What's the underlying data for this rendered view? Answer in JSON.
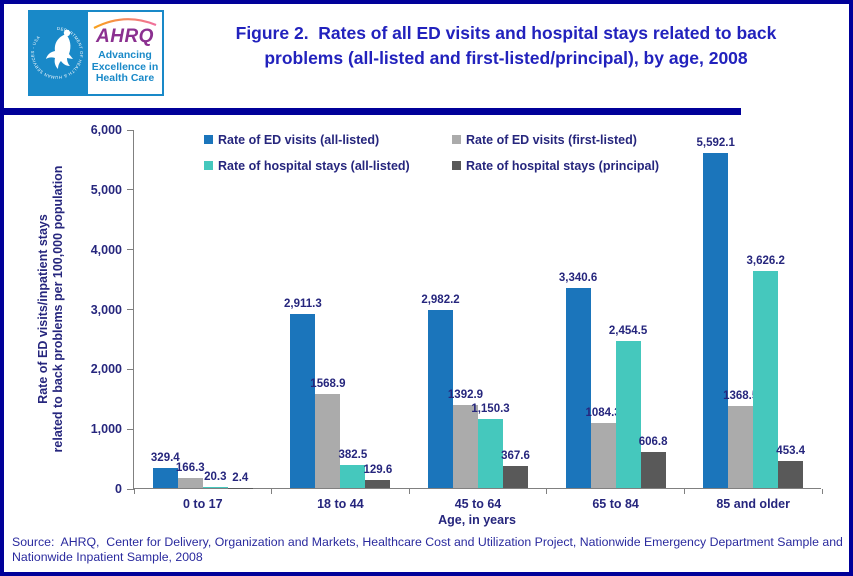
{
  "header": {
    "title_line1": "Figure 2.  Rates of all ED visits and hospital stays related to back",
    "title_line2": "problems (all-listed and first-listed/principal), by age, 2008",
    "logo": {
      "seal_text": "DEPARTMENT OF HEALTH & HUMAN SERVICES - USA",
      "acronym": "AHRQ",
      "tagline_line1": "Advancing",
      "tagline_line2": "Excellence in",
      "tagline_line3": "Health Care"
    }
  },
  "chart_data": {
    "type": "bar",
    "title": "Figure 2. Rates of all ED visits and hospital stays related to back problems (all-listed and first-listed/principal), by age, 2008",
    "categories": [
      "0 to 17",
      "18 to 44",
      "45 to 64",
      "65 to 84",
      "85 and older"
    ],
    "series": [
      {
        "name": "Rate of ED visits (all-listed)",
        "color": "#1b75bb",
        "values": [
          329.4,
          2911.3,
          2982.2,
          3340.6,
          5592.1
        ],
        "labels": [
          "329.4",
          "2,911.3",
          "2,982.2",
          "3,340.6",
          "5,592.1"
        ]
      },
      {
        "name": "Rate of ED visits (first-listed)",
        "color": "#ababab",
        "values": [
          166.3,
          1568.9,
          1392.9,
          1084.3,
          1368.5
        ],
        "labels": [
          "166.3",
          "1568.9",
          "1392.9",
          "1084.3",
          "1368.5"
        ]
      },
      {
        "name": "Rate of hospital stays (all-listed)",
        "color": "#45c8bd",
        "values": [
          20.3,
          382.5,
          1150.3,
          2454.5,
          3626.2
        ],
        "labels": [
          "20.3",
          "382.5",
          "1,150.3",
          "2,454.5",
          "3,626.2"
        ]
      },
      {
        "name": "Rate of hospital stays (principal)",
        "color": "#595959",
        "values": [
          2.4,
          129.6,
          367.6,
          606.8,
          453.4
        ],
        "labels": [
          "2.4",
          "129.6",
          "367.6",
          "606.8",
          "453.4"
        ]
      }
    ],
    "xlabel": "Age, in years",
    "ylabel_line1": "Rate of ED visits/inpatient stays",
    "ylabel_line2": "related to back problems per 100,000 population",
    "ylim": [
      0,
      6000
    ],
    "y_ticks": [
      "0",
      "1,000",
      "2,000",
      "3,000",
      "4,000",
      "5,000",
      "6,000"
    ],
    "grid": false,
    "legend_position": "top-inside"
  },
  "footer": {
    "source": "Source:  AHRQ,  Center for Delivery, Organization and Markets, Healthcare Cost and Utilization Project, Nationwide Emergency Department Sample and\nNationwide Inpatient Sample, 2008"
  },
  "colors": {
    "frame_border": "#000099",
    "divider": "#000099",
    "title_text": "#2222bd",
    "chart_text": "#26267d",
    "source_text": "#2a2a9e",
    "axis_line": "#808080",
    "series_blue": "#1b75bb",
    "series_gray": "#ababab",
    "series_teal": "#45c8bd",
    "series_darkgray": "#595959",
    "logo_blue": "#1989c8",
    "logo_purple": "#8b3090"
  }
}
